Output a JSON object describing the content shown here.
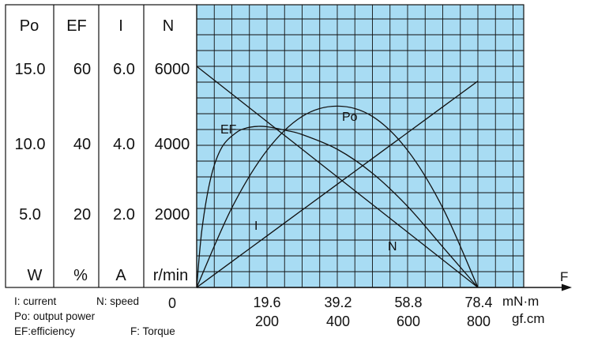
{
  "colors": {
    "plot_background": "#a8dcf3",
    "ink": "#111111",
    "page": "#ffffff"
  },
  "headers": {
    "po": "Po",
    "ef": "EF",
    "i": "I",
    "n": "N"
  },
  "y_ticks": {
    "po": [
      "15.0",
      "10.0",
      "5.0"
    ],
    "ef": [
      "60",
      "40",
      "20"
    ],
    "i": [
      "6.0",
      "4.0",
      "2.0"
    ],
    "n": [
      "6000",
      "4000",
      "2000"
    ]
  },
  "y_units": {
    "po": "W",
    "ef": "%",
    "i": "A",
    "n": "r/min"
  },
  "x_axis": {
    "zero_label": "0",
    "ticks_mnm": [
      "19.6",
      "39.2",
      "58.8",
      "78.4"
    ],
    "ticks_gfcm": [
      "200",
      "400",
      "600",
      "800"
    ],
    "unit_mnm": "mN·m",
    "unit_gfcm": "gf.cm",
    "axis_letter": "F"
  },
  "legend": {
    "current": "I: current",
    "speed": "N: speed",
    "output_power": "Po: output power",
    "efficiency": "EF:efficiency",
    "torque": "F: Torque"
  },
  "chart_data": {
    "type": "line",
    "x_unit": "mN·m",
    "x": [
      0,
      9.8,
      19.6,
      29.4,
      39.2,
      49,
      58.8,
      68.6,
      78.4
    ],
    "xlim": [
      0,
      78.4
    ],
    "grid": true,
    "series": [
      {
        "name": "N",
        "axis": "N (r/min)",
        "label": "N",
        "ylim": [
          0,
          6000
        ],
        "values": [
          6000,
          5250,
          4500,
          3750,
          3000,
          2250,
          1500,
          750,
          0
        ]
      },
      {
        "name": "I",
        "axis": "I (A)",
        "label": "I",
        "ylim": [
          0,
          6.0
        ],
        "values": [
          0.0,
          0.7,
          1.4,
          2.1,
          2.8,
          3.5,
          4.2,
          4.9,
          5.6
        ]
      },
      {
        "name": "Po",
        "axis": "Po (W)",
        "label": "Po",
        "ylim": [
          0,
          15.0
        ],
        "values": [
          0.0,
          5.4,
          9.3,
          11.6,
          12.3,
          11.6,
          9.3,
          5.4,
          0.0
        ]
      },
      {
        "name": "EF",
        "axis": "EF (%)",
        "label": "EF",
        "ylim": [
          0,
          60
        ],
        "x": [
          0,
          1.5,
          4,
          7,
          11,
          14,
          17,
          19.6,
          25,
          29.4,
          39.2,
          49,
          58.8,
          68.6,
          78.4
        ],
        "values": [
          0,
          16,
          30,
          38,
          42,
          43.3,
          43.7,
          43.6,
          42.6,
          41.5,
          37.5,
          31,
          22,
          11,
          0
        ]
      }
    ]
  }
}
